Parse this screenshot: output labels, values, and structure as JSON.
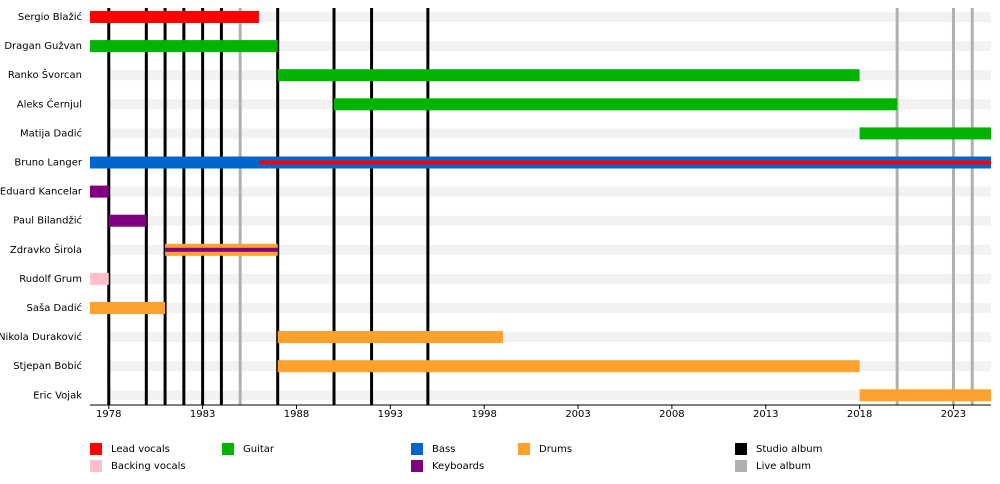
{
  "chart_data": {
    "type": "timeline",
    "roles": [
      {
        "name": "Lead vocals",
        "color": "#ff0000"
      },
      {
        "name": "Backing vocals",
        "color": "#ffc0cb"
      },
      {
        "name": "Guitar",
        "color": "#00b400"
      },
      {
        "name": "Bass",
        "color": "#0066cc"
      },
      {
        "name": "Keyboards",
        "color": "#800080"
      },
      {
        "name": "Drums",
        "color": "#ffa12e"
      }
    ],
    "members": [
      {
        "name": "Sergio Blažić",
        "bars": [
          {
            "role": 0,
            "start": 1977,
            "end": 1986
          }
        ]
      },
      {
        "name": "Dragan Gužvan",
        "bars": [
          {
            "role": 2,
            "start": 1977,
            "end": 1987
          }
        ]
      },
      {
        "name": "Ranko Švorcan",
        "bars": [
          {
            "role": 2,
            "start": 1987,
            "end": 2018
          }
        ]
      },
      {
        "name": "Aleks Černjul",
        "bars": [
          {
            "role": 2,
            "start": 1990,
            "end": 2020
          }
        ]
      },
      {
        "name": "Matija Dadić",
        "bars": [
          {
            "role": 2,
            "start": 2018,
            "end": 2025
          }
        ]
      },
      {
        "name": "Bruno Langer",
        "bars": [
          {
            "role": 3,
            "start": 1977,
            "end": 2025
          },
          {
            "role": 0,
            "start": 1986,
            "end": 2025,
            "stripe": true
          }
        ]
      },
      {
        "name": "Eduard Kancelar",
        "bars": [
          {
            "role": 4,
            "start": 1977,
            "end": 1978
          }
        ]
      },
      {
        "name": "Paul Bilandžić",
        "bars": [
          {
            "role": 4,
            "start": 1978,
            "end": 1980
          }
        ]
      },
      {
        "name": "Zdravko Širola",
        "bars": [
          {
            "role": 5,
            "start": 1981,
            "end": 1987
          },
          {
            "role": 4,
            "start": 1981,
            "end": 1987,
            "stripe": true
          }
        ]
      },
      {
        "name": "Rudolf Grum",
        "bars": [
          {
            "role": 1,
            "start": 1977,
            "end": 1978
          }
        ]
      },
      {
        "name": "Saša Dadić",
        "bars": [
          {
            "role": 5,
            "start": 1977,
            "end": 1981
          }
        ]
      },
      {
        "name": "Nikola Duraković",
        "bars": [
          {
            "role": 5,
            "start": 1987,
            "end": 1999
          }
        ]
      },
      {
        "name": "Stjepan Bobić",
        "bars": [
          {
            "role": 5,
            "start": 1987,
            "end": 2018
          }
        ]
      },
      {
        "name": "Eric Vojak",
        "bars": [
          {
            "role": 5,
            "start": 2018,
            "end": 2025
          }
        ]
      }
    ],
    "events": [
      {
        "name": "Studio album",
        "color": "#000000",
        "years": [
          1978,
          1980,
          1981,
          1982,
          1983,
          1984,
          1987,
          1990,
          1992,
          1995
        ]
      },
      {
        "name": "Live album",
        "color": "#b0b0b0",
        "years": [
          1985,
          2020,
          2023,
          2024
        ]
      }
    ],
    "xlim": [
      1977,
      2025
    ],
    "xticks": [
      1978,
      1983,
      1988,
      1993,
      1998,
      2003,
      2008,
      2013,
      2018,
      2023
    ]
  }
}
